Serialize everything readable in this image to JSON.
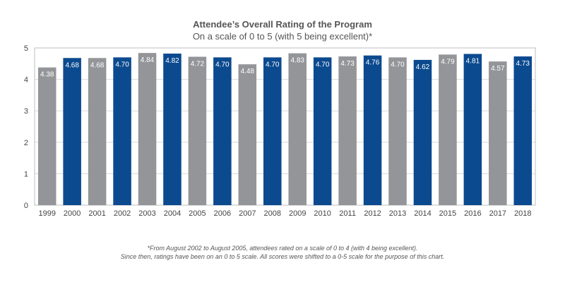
{
  "chart_data": {
    "type": "bar",
    "title": "Attendee’s Overall Rating of the Program",
    "subtitle": "On a scale of 0 to 5 (with 5 being excellent)*",
    "categories": [
      "1999",
      "2000",
      "2001",
      "2002",
      "2003",
      "2004",
      "2005",
      "2006",
      "2007",
      "2008",
      "2009",
      "2010",
      "2011",
      "2012",
      "2013",
      "2014",
      "2015",
      "2016",
      "2017",
      "2018"
    ],
    "values": [
      4.38,
      4.68,
      4.68,
      4.7,
      4.84,
      4.82,
      4.72,
      4.7,
      4.48,
      4.7,
      4.83,
      4.7,
      4.73,
      4.76,
      4.7,
      4.62,
      4.79,
      4.81,
      4.57,
      4.73
    ],
    "data_labels": [
      "4.38",
      "4.68",
      "4.68",
      "4.70",
      "4.84",
      "4.82",
      "4.72",
      "4.70",
      "4.48",
      "4.70",
      "4.83",
      "4.70",
      "4.73",
      "4.76",
      "4.70",
      "4.62",
      "4.79",
      "4.81",
      "4.57",
      "4.73"
    ],
    "yticks": [
      "0",
      "1",
      "2",
      "3",
      "4",
      "5"
    ],
    "ylim": [
      0,
      5
    ],
    "xlabel": "",
    "ylabel": "",
    "grid": true,
    "colors": {
      "gray": "#939598",
      "blue": "#0b4a8f",
      "grid": "#d9d9d9",
      "frame": "#bfbfbf"
    },
    "bar_colors": [
      "gray",
      "blue",
      "gray",
      "blue",
      "gray",
      "blue",
      "gray",
      "blue",
      "gray",
      "blue",
      "gray",
      "blue",
      "gray",
      "blue",
      "gray",
      "blue",
      "gray",
      "blue",
      "gray",
      "blue"
    ]
  },
  "footnote": {
    "line1": "*From August 2002 to August 2005, attendees rated on a scale of 0 to 4 (with 4 being excellent).",
    "line2": "Since then, ratings have been on an 0 to 5 scale. All scores were shifted to a 0-5 scale for the purpose of this chart."
  }
}
